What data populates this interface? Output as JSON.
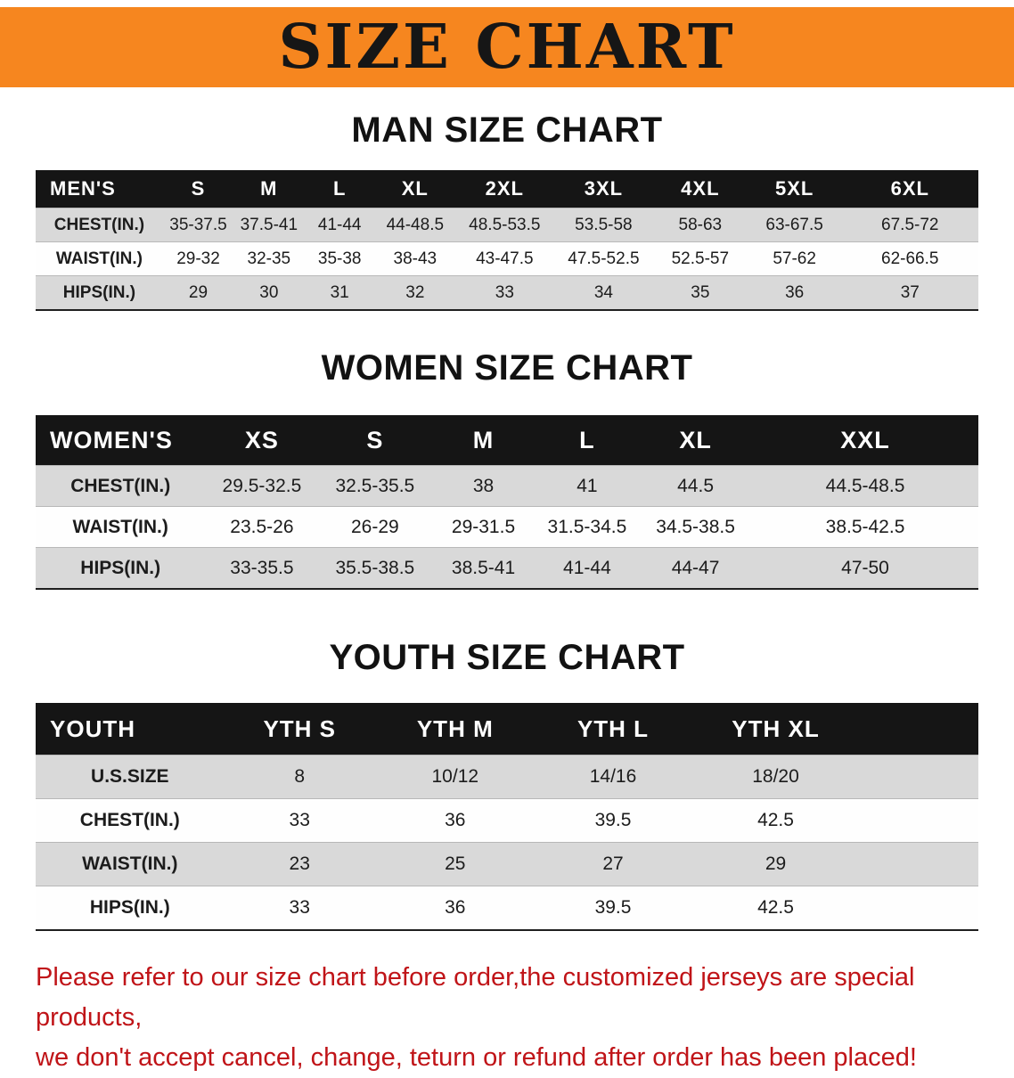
{
  "banner": {
    "title": "SIZE CHART",
    "bg_color": "#f6861f",
    "text_color": "#161616"
  },
  "sections": [
    {
      "id": "men",
      "heading": "MAN SIZE CHART",
      "table": {
        "header": [
          "MEN'S",
          "S",
          "M",
          "L",
          "XL",
          "2XL",
          "3XL",
          "4XL",
          "5XL",
          "6XL"
        ],
        "rows": [
          [
            "CHEST(IN.)",
            "35-37.5",
            "37.5-41",
            "41-44",
            "44-48.5",
            "48.5-53.5",
            "53.5-58",
            "58-63",
            "63-67.5",
            "67.5-72"
          ],
          [
            "WAIST(IN.)",
            "29-32",
            "32-35",
            "35-38",
            "38-43",
            "43-47.5",
            "47.5-52.5",
            "52.5-57",
            "57-62",
            "62-66.5"
          ],
          [
            "HIPS(IN.)",
            "29",
            "30",
            "31",
            "32",
            "33",
            "34",
            "35",
            "36",
            "37"
          ]
        ]
      }
    },
    {
      "id": "women",
      "heading": "WOMEN SIZE CHART",
      "table": {
        "header": [
          "WOMEN'S",
          "XS",
          "S",
          "M",
          "L",
          "XL",
          "XXL"
        ],
        "rows": [
          [
            "CHEST(IN.)",
            "29.5-32.5",
            "32.5-35.5",
            "38",
            "41",
            "44.5",
            "44.5-48.5"
          ],
          [
            "WAIST(IN.)",
            "23.5-26",
            "26-29",
            "29-31.5",
            "31.5-34.5",
            "34.5-38.5",
            "38.5-42.5"
          ],
          [
            "HIPS(IN.)",
            "33-35.5",
            "35.5-38.5",
            "38.5-41",
            "41-44",
            "44-47",
            "47-50"
          ]
        ]
      }
    },
    {
      "id": "youth",
      "heading": "YOUTH SIZE CHART",
      "table": {
        "header": [
          "YOUTH",
          "YTH S",
          "YTH M",
          "YTH L",
          "YTH XL"
        ],
        "rows": [
          [
            "U.S.SIZE",
            "8",
            "10/12",
            "14/16",
            "18/20"
          ],
          [
            "CHEST(IN.)",
            "33",
            "36",
            "39.5",
            "42.5"
          ],
          [
            "WAIST(IN.)",
            "23",
            "25",
            "27",
            "29"
          ],
          [
            "HIPS(IN.)",
            "33",
            "36",
            "39.5",
            "42.5"
          ]
        ]
      }
    }
  ],
  "disclaimer": {
    "line1": "Please refer to our size chart before order,the customized jerseys are special products,",
    "line2": "we don't accept cancel, change, teturn or refund after order has been placed!",
    "color": "#c01418"
  }
}
